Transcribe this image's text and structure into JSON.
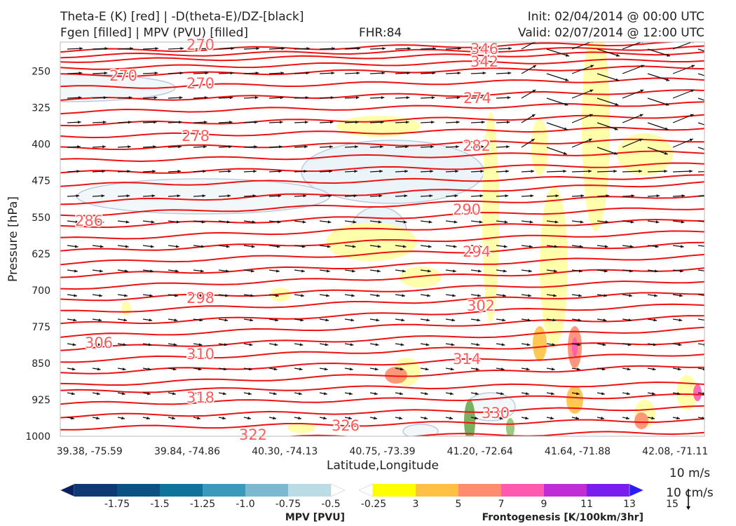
{
  "header": {
    "title_line1": "Theta-E (K) [red] | -D(theta-E)/DZ-[black]",
    "title_line2": "Fgen [filled] | MPV (PVU) [filled]",
    "fhr": "FHR:84",
    "init": "Init: 02/04/2014 @ 00:00 UTC",
    "valid": "Valid: 02/07/2014 @ 12:00 UTC"
  },
  "chart_data": {
    "type": "cross-section",
    "xlabel": "Latitude,Longitude",
    "ylabel": "Pressure [hPa]",
    "x_ticks": [
      "39.38, -75.59",
      "39.84, -74.86",
      "40.30, -74.13",
      "40.75, -73.39",
      "41.20, -72.64",
      "41.64, -71.88",
      "42.08, -71.11"
    ],
    "y_ticks": [
      250,
      325,
      400,
      475,
      550,
      625,
      700,
      775,
      850,
      925,
      1000
    ],
    "ylim": [
      1000,
      190
    ],
    "grid": false,
    "theta_e_contours_K": [
      {
        "value": 270,
        "label_near": "40.0, -74.2 / 1000 hPa"
      },
      {
        "value": 270,
        "label_near": "40.8, -73.3 / 985 hPa"
      },
      {
        "value": 270,
        "label_near": "41.6, -71.9 / 970 hPa"
      },
      {
        "value": 274,
        "label_near": "40.0, -74.6 / 945 hPa"
      },
      {
        "value": 278,
        "label_near": "41.3, -72.5 / 880 hPa"
      },
      {
        "value": 282,
        "label_near": "40.0, -74.6 / 865 hPa"
      },
      {
        "value": 286,
        "label_near": "39.5, -75.4 / 820 hPa"
      },
      {
        "value": 290,
        "label_near": "41.3, -72.4 / 750 hPa"
      },
      {
        "value": 294,
        "label_near": "40.0, -74.6 / 715 hPa"
      },
      {
        "value": 298,
        "label_near": "41.3, -72.5 / 610 hPa"
      },
      {
        "value": 302,
        "label_near": "41.2, -72.7 / 535 hPa"
      },
      {
        "value": 306,
        "label_near": "39.5, -75.4 / 560 hPa"
      },
      {
        "value": 310,
        "label_near": "41.3, -72.4 / 405 hPa"
      },
      {
        "value": 314,
        "label_near": "40.0, -74.6 / 390 hPa"
      },
      {
        "value": 318,
        "label_near": "41.3, -72.4 / 330 hPa"
      },
      {
        "value": 322,
        "label_near": "40.0, -74.6 / 290 hPa"
      },
      {
        "value": 326,
        "label_near": "39.6, -75.2 / 270 hPa"
      },
      {
        "value": 330,
        "label_near": "41.4, -72.2 / 245 hPa"
      },
      {
        "value": 342,
        "label_near": "41.4, -72.2 / 215 hPa"
      },
      {
        "value": 346,
        "label_near": "40.0, -74.6 / 210 hPa"
      }
    ],
    "mpv_colorbar": {
      "label": "MPV [PVU]",
      "ticks": [
        "-1.75",
        "-1.5",
        "-1.25",
        "-1.0",
        "-0.75",
        "-0.5",
        "-0.25"
      ],
      "colors": [
        "#08205e",
        "#0d3a73",
        "#0b5283",
        "#10739a",
        "#3b99bb",
        "#7cb8cf",
        "#bcdce5",
        "#ffffff"
      ]
    },
    "fgen_colorbar": {
      "label": "Frontogenesis [K/100km/3hr]",
      "ticks": [
        "3",
        "5",
        "7",
        "9",
        "11",
        "13",
        "15"
      ],
      "colors": [
        "#ffffff",
        "#ffff00",
        "#ffc144",
        "#ff8c6e",
        "#ff5ab0",
        "#c02cd6",
        "#7a1ef0",
        "#2a1afc"
      ]
    },
    "vector_key": [
      "10 m/s",
      "10 cm/s"
    ]
  }
}
